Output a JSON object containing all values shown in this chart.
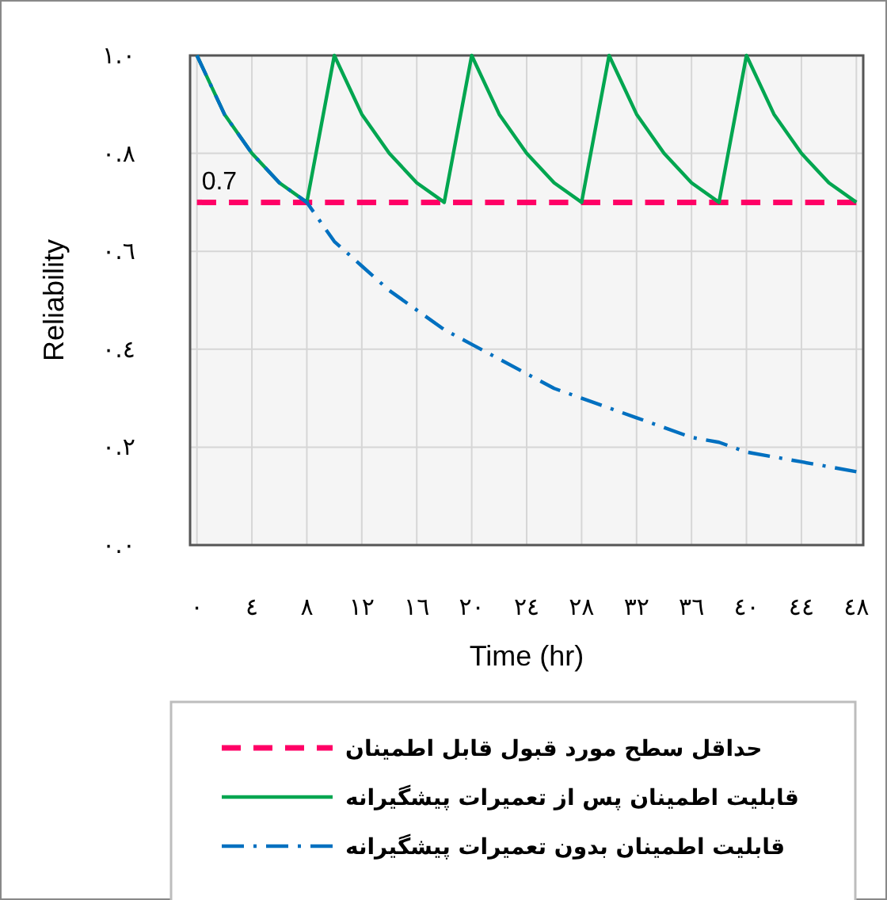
{
  "chart_data": {
    "type": "line",
    "xlabel": "Time (hr)",
    "ylabel": "Reliability",
    "x": [
      0,
      2,
      4,
      6,
      8,
      10,
      12,
      14,
      16,
      18,
      20,
      22,
      24,
      26,
      28,
      30,
      32,
      34,
      36,
      38,
      40,
      42,
      44,
      46,
      48
    ],
    "xlim": [
      -0.5,
      48.5
    ],
    "xticks": [
      {
        "value": 0,
        "label": "٠"
      },
      {
        "value": 4,
        "label": "٤"
      },
      {
        "value": 8,
        "label": "٨"
      },
      {
        "value": 12,
        "label": "١٢"
      },
      {
        "value": 16,
        "label": "١٦"
      },
      {
        "value": 20,
        "label": "٢٠"
      },
      {
        "value": 24,
        "label": "٢٤"
      },
      {
        "value": 28,
        "label": "٢٨"
      },
      {
        "value": 32,
        "label": "٣٢"
      },
      {
        "value": 36,
        "label": "٣٦"
      },
      {
        "value": 40,
        "label": "٤٠"
      },
      {
        "value": 44,
        "label": "٤٤"
      },
      {
        "value": 48,
        "label": "٤٨"
      }
    ],
    "ylim": [
      0,
      1
    ],
    "yticks": [
      {
        "value": 0,
        "label": "٠.٠"
      },
      {
        "value": 0.2,
        "label": "٠.٢"
      },
      {
        "value": 0.4,
        "label": "٠.٤"
      },
      {
        "value": 0.6,
        "label": "٠.٦"
      },
      {
        "value": 0.8,
        "label": "٠.٨"
      },
      {
        "value": 1,
        "label": "١.٠"
      }
    ],
    "grid": true,
    "legend": "bottom",
    "marker": "none",
    "series": [
      {
        "name": "حداقل سطح مورد قبول قابل اطمینان",
        "color": "#ff0066",
        "line_style": "dashed",
        "x": [
          0,
          48
        ],
        "values": [
          0.7,
          0.7
        ]
      },
      {
        "name": "قابلیت اطمینان پس از تعمیرات پیشگیرانه",
        "color": "#00a650",
        "line_style": "solid",
        "values": [
          1.0,
          0.88,
          0.8,
          0.74,
          0.7,
          1.0,
          0.88,
          0.8,
          0.74,
          0.7,
          1.0,
          0.88,
          0.8,
          0.74,
          0.7,
          1.0,
          0.88,
          0.8,
          0.74,
          0.7,
          1.0,
          0.88,
          0.8,
          0.74,
          0.7
        ]
      },
      {
        "name": "قابلیت اطمینان بدون تعمیرات پیشگیرانه",
        "color": "#0070c0",
        "line_style": "dashdot",
        "values": [
          1.0,
          0.88,
          0.8,
          0.74,
          0.7,
          0.62,
          0.57,
          0.52,
          0.48,
          0.44,
          0.41,
          0.38,
          0.35,
          0.32,
          0.3,
          0.28,
          0.26,
          0.24,
          0.22,
          0.21,
          0.19,
          0.18,
          0.17,
          0.16,
          0.15
        ]
      }
    ],
    "annotations": [
      {
        "text": "0.7",
        "x": 0,
        "y": 0.7
      }
    ]
  }
}
